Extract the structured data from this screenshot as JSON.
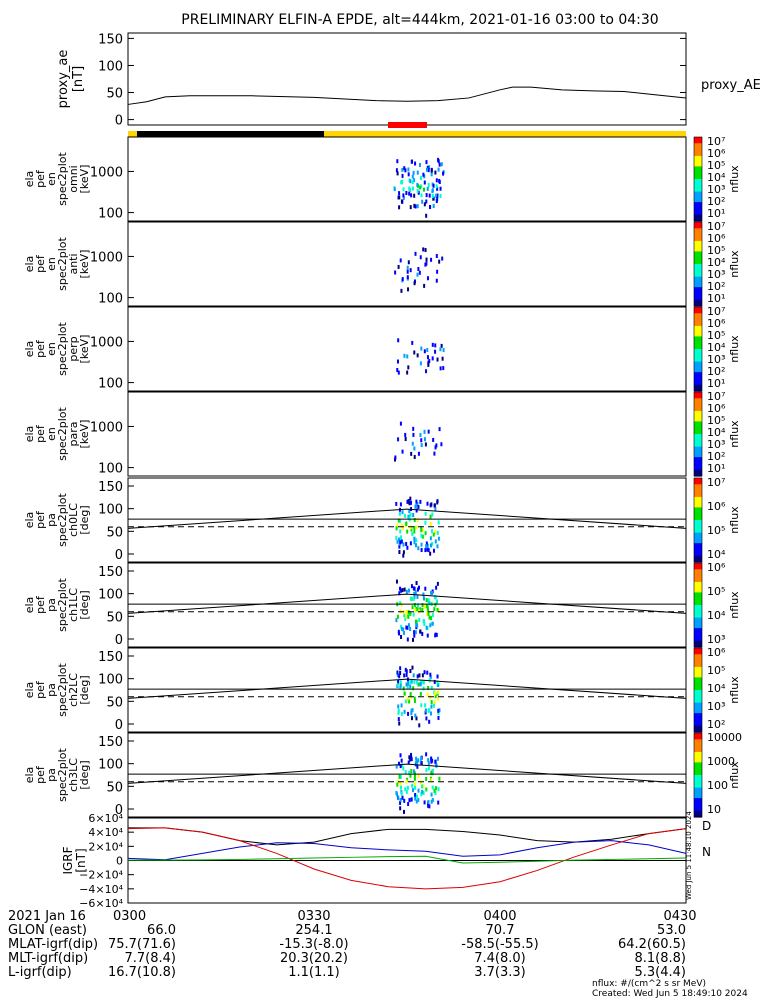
{
  "title": "PRELIMINARY ELFIN-A EPDE, alt=444km, 2021-01-16 03:00 to 04:30",
  "colors": {
    "sunlit_bar": "#ffd400",
    "shadow_bar": "#000000",
    "science_bar": "#ff0000",
    "igrf_x": "#000000",
    "igrf_y": "#0000cc",
    "igrf_z": "#dd0000",
    "igrf_extra": "#00aa00"
  },
  "chart_data": [
    {
      "type": "line",
      "panel": "proxy_ae",
      "ylabel_lines": [
        "proxy_ae",
        "[nT]"
      ],
      "legend": "proxy_AE",
      "ylim": [
        -10,
        160
      ],
      "yticks": [
        "150",
        "100",
        "50",
        "0"
      ],
      "ytick_values": [
        150,
        100,
        50,
        0
      ],
      "x": [
        0,
        3,
        6,
        10,
        20,
        30,
        40,
        45,
        50,
        55,
        60,
        62,
        65,
        70,
        75,
        80,
        85,
        90
      ],
      "y": [
        28,
        33,
        42,
        44,
        44,
        41,
        35,
        34,
        35,
        40,
        55,
        60,
        60,
        55,
        53,
        52,
        46,
        40
      ]
    },
    {
      "type": "heatmap",
      "panel": "en_omni",
      "ylabel_lines": [
        "ela",
        "pef",
        "en",
        "spec2plot",
        "omni",
        "[keV]"
      ],
      "yticks": [
        "1000",
        "100"
      ],
      "colorbar_label": "nflux",
      "colorbar_ticks": [
        "10⁷",
        "10⁶",
        "10⁵",
        "10⁴",
        "10³",
        "10²",
        "10¹"
      ]
    },
    {
      "type": "heatmap",
      "panel": "en_anti",
      "ylabel_lines": [
        "ela",
        "pef",
        "en",
        "spec2plot",
        "anti",
        "[keV]"
      ],
      "yticks": [
        "1000",
        "100"
      ],
      "colorbar_label": "nflux",
      "colorbar_ticks": [
        "10⁷",
        "10⁶",
        "10⁵",
        "10⁴",
        "10³",
        "10²",
        "10¹"
      ]
    },
    {
      "type": "heatmap",
      "panel": "en_perp",
      "ylabel_lines": [
        "ela",
        "pef",
        "en",
        "spec2plot",
        "perp",
        "[keV]"
      ],
      "yticks": [
        "1000",
        "100"
      ],
      "colorbar_label": "nflux",
      "colorbar_ticks": [
        "10⁷",
        "10⁶",
        "10⁵",
        "10⁴",
        "10³",
        "10²",
        "10¹"
      ]
    },
    {
      "type": "heatmap",
      "panel": "en_para",
      "ylabel_lines": [
        "ela",
        "pef",
        "en",
        "spec2plot",
        "para",
        "[keV]"
      ],
      "yticks": [
        "1000",
        "100"
      ],
      "colorbar_label": "nflux",
      "colorbar_ticks": [
        "10⁷",
        "10⁶",
        "10⁵",
        "10⁴",
        "10³",
        "10²",
        "10¹"
      ]
    },
    {
      "type": "heatmap",
      "panel": "pa_ch0LC",
      "ylabel_lines": [
        "ela",
        "pef",
        "pa",
        "spec2plot",
        "ch0LC",
        "[deg]"
      ],
      "yticks": [
        "150",
        "100",
        "50",
        "0"
      ],
      "colorbar_label": "nflux",
      "colorbar_ticks": [
        "10⁷",
        "10⁶",
        "10⁵",
        "10⁴"
      ]
    },
    {
      "type": "heatmap",
      "panel": "pa_ch1LC",
      "ylabel_lines": [
        "ela",
        "pef",
        "pa",
        "spec2plot",
        "ch1LC",
        "[deg]"
      ],
      "yticks": [
        "150",
        "100",
        "50",
        "0"
      ],
      "colorbar_label": "nflux",
      "colorbar_ticks": [
        "10⁶",
        "10⁵",
        "10⁴",
        "10³"
      ]
    },
    {
      "type": "heatmap",
      "panel": "pa_ch2LC",
      "ylabel_lines": [
        "ela",
        "pef",
        "pa",
        "spec2plot",
        "ch2LC",
        "[deg]"
      ],
      "yticks": [
        "150",
        "100",
        "50",
        "0"
      ],
      "colorbar_label": "nflux",
      "colorbar_ticks": [
        "10⁶",
        "10⁵",
        "10⁴",
        "10³",
        "10²"
      ]
    },
    {
      "type": "heatmap",
      "panel": "pa_ch3LC",
      "ylabel_lines": [
        "ela",
        "pef",
        "pa",
        "spec2plot",
        "ch3LC",
        "[deg]"
      ],
      "yticks": [
        "150",
        "100",
        "50",
        "0"
      ],
      "colorbar_label": "nflux",
      "colorbar_ticks": [
        "10000",
        "1000",
        "100",
        "10"
      ]
    },
    {
      "type": "line",
      "panel": "igrf",
      "ylabel_lines": [
        "IGRF",
        "[nT]"
      ],
      "yticks": [
        "6×10⁴",
        "4×10⁴",
        "2×10⁴",
        "0",
        "−2×10⁴",
        "−4×10⁴",
        "−6×10⁴"
      ],
      "ylim": [
        -60000,
        60000
      ],
      "legend_marks": [
        "D",
        "N"
      ],
      "side_note": "Wed Jun  5 11:48:10 2024",
      "x": [
        0,
        6,
        12,
        18,
        24,
        30,
        36,
        42,
        48,
        54,
        60,
        66,
        72,
        78,
        84,
        90
      ],
      "series": [
        {
          "values": [
            46000,
            46000,
            40000,
            28000,
            22000,
            26000,
            38000,
            44000,
            44000,
            41000,
            36000,
            28000,
            26000,
            30000,
            38000,
            45000
          ]
        },
        {
          "values": [
            3000,
            1000,
            10000,
            19000,
            25000,
            24000,
            18000,
            15000,
            13000,
            6000,
            8000,
            18000,
            26000,
            28000,
            22000,
            10000
          ]
        },
        {
          "values": [
            45000,
            46000,
            40000,
            28000,
            10000,
            -12000,
            -28000,
            -37000,
            -40000,
            -38000,
            -30000,
            -14000,
            5000,
            22000,
            38000,
            45000
          ]
        },
        {
          "values": [
            500,
            500,
            800,
            1500,
            2500,
            3500,
            4500,
            5500,
            6000,
            -3500,
            -2500,
            -1000,
            500,
            1500,
            2500,
            3500
          ]
        }
      ]
    }
  ],
  "time_axis": {
    "date_label": "2021 Jan 16",
    "ticks": [
      "0300",
      "0330",
      "0400",
      "0430"
    ]
  },
  "ephemeris": [
    {
      "label": "GLON (east)",
      "values": [
        "66.0",
        "254.1",
        "70.7",
        "53.0"
      ]
    },
    {
      "label": "MLAT-igrf(dip)",
      "values": [
        "75.7(71.6)",
        "-15.3(-8.0)",
        "-58.5(-55.5)",
        "64.2(60.5)"
      ]
    },
    {
      "label": "MLT-igrf(dip)",
      "values": [
        "7.7(8.4)",
        "20.3(20.2)",
        "7.4(8.0)",
        "8.1(8.8)"
      ]
    },
    {
      "label": "L-igrf(dip)",
      "values": [
        "16.7(10.8)",
        "1.1(1.1)",
        "3.7(3.3)",
        "5.3(4.4)"
      ]
    }
  ],
  "footer": {
    "units": "nflux: #/(cm^2 s sr MeV)",
    "created": "Created: Wed Jun  5 18:49:10 2024"
  }
}
